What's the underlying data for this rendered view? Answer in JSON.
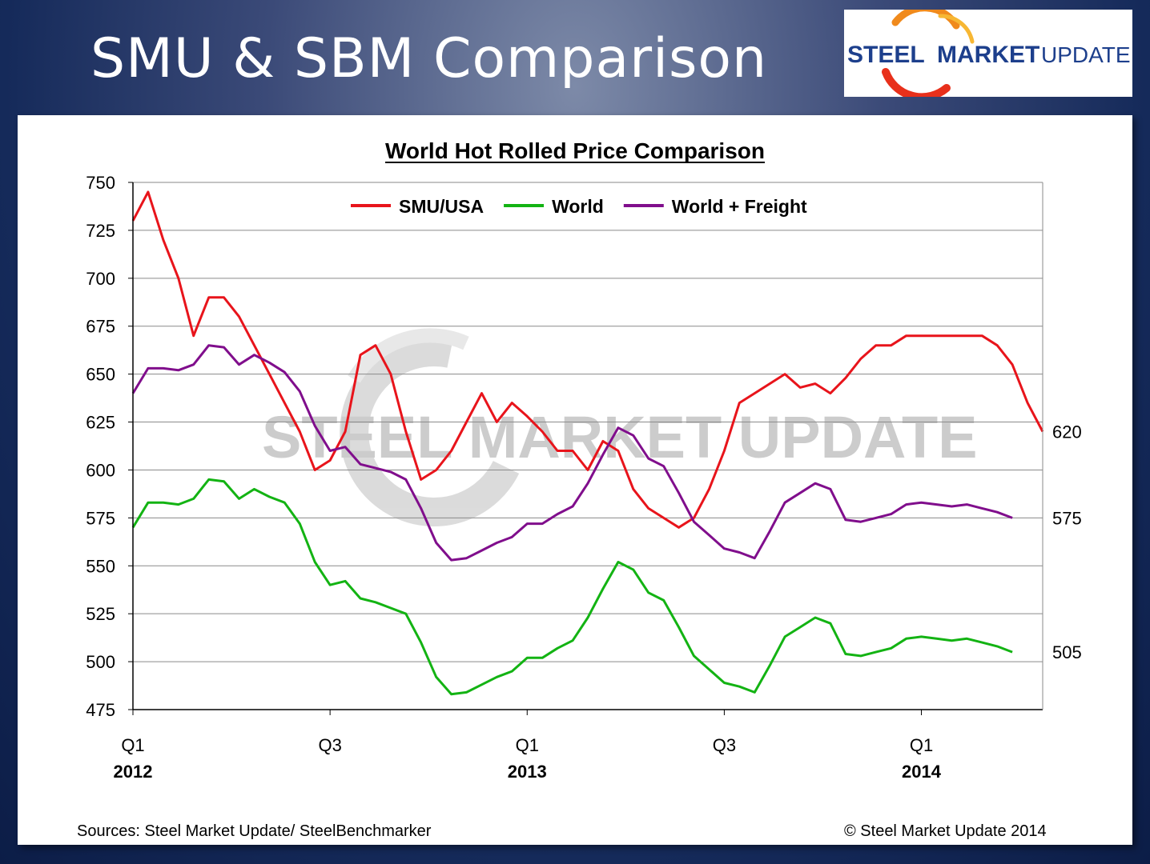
{
  "slide": {
    "title": "SMU & SBM Comparison",
    "logo": {
      "word1": "STEEL",
      "word2": "MARKET",
      "word3": "UPDATE"
    },
    "watermark": "STEEL MARKET UPDATE",
    "sources": "Sources: Steel Market Update/ SteelBenchmarker",
    "copyright": "© Steel Market Update 2014"
  },
  "colors": {
    "smu": "#e8141b",
    "world": "#13b313",
    "world_freight": "#800e8c",
    "logo_blue": "#1d3f8c",
    "logo_orange": "#f08a1c"
  },
  "chart_data": {
    "type": "line",
    "title": "World Hot Rolled Price Comparison",
    "ylim": [
      475,
      750
    ],
    "yticks": [
      475,
      500,
      525,
      550,
      575,
      600,
      625,
      650,
      675,
      700,
      725,
      750
    ],
    "grid": true,
    "legend_position": "top-center",
    "x_quarter_labels": [
      {
        "label": "Q1",
        "year": "2012",
        "pos": 0
      },
      {
        "label": "Q3",
        "year": "",
        "pos": 13
      },
      {
        "label": "Q1",
        "year": "2013",
        "pos": 26
      },
      {
        "label": "Q3",
        "year": "",
        "pos": 39
      },
      {
        "label": "Q1",
        "year": "2014",
        "pos": 52
      }
    ],
    "series": [
      {
        "name": "SMU/USA",
        "color": "#e8141b",
        "end_label": "620",
        "values": [
          730,
          745,
          720,
          700,
          670,
          690,
          690,
          680,
          665,
          650,
          635,
          620,
          600,
          605,
          620,
          660,
          665,
          650,
          620,
          595,
          600,
          610,
          625,
          640,
          625,
          635,
          628,
          620,
          610,
          610,
          600,
          615,
          610,
          590,
          580,
          575,
          570,
          575,
          590,
          610,
          635,
          640,
          645,
          650,
          643,
          645,
          640,
          648,
          658,
          665,
          665,
          670,
          670,
          670,
          670,
          670,
          670,
          665,
          655,
          635,
          620
        ]
      },
      {
        "name": "World",
        "color": "#13b313",
        "end_label": "505",
        "values": [
          570,
          583,
          583,
          582,
          585,
          595,
          594,
          585,
          590,
          586,
          583,
          572,
          552,
          540,
          542,
          533,
          531,
          528,
          525,
          510,
          492,
          483,
          484,
          488,
          492,
          495,
          502,
          502,
          507,
          511,
          523,
          538,
          552,
          548,
          536,
          532,
          518,
          503,
          496,
          489,
          487,
          484,
          498,
          513,
          518,
          523,
          520,
          504,
          503,
          505,
          507,
          512,
          513,
          512,
          511,
          512,
          510,
          508,
          505
        ]
      },
      {
        "name": "World + Freight",
        "color": "#800e8c",
        "end_label": "575",
        "values": [
          640,
          653,
          653,
          652,
          655,
          665,
          664,
          655,
          660,
          656,
          651,
          641,
          623,
          610,
          612,
          603,
          601,
          599,
          595,
          580,
          562,
          553,
          554,
          558,
          562,
          565,
          572,
          572,
          577,
          581,
          593,
          608,
          622,
          618,
          606,
          602,
          588,
          573,
          566,
          559,
          557,
          554,
          568,
          583,
          588,
          593,
          590,
          574,
          573,
          575,
          577,
          582,
          583,
          582,
          581,
          582,
          580,
          578,
          575
        ]
      }
    ]
  }
}
